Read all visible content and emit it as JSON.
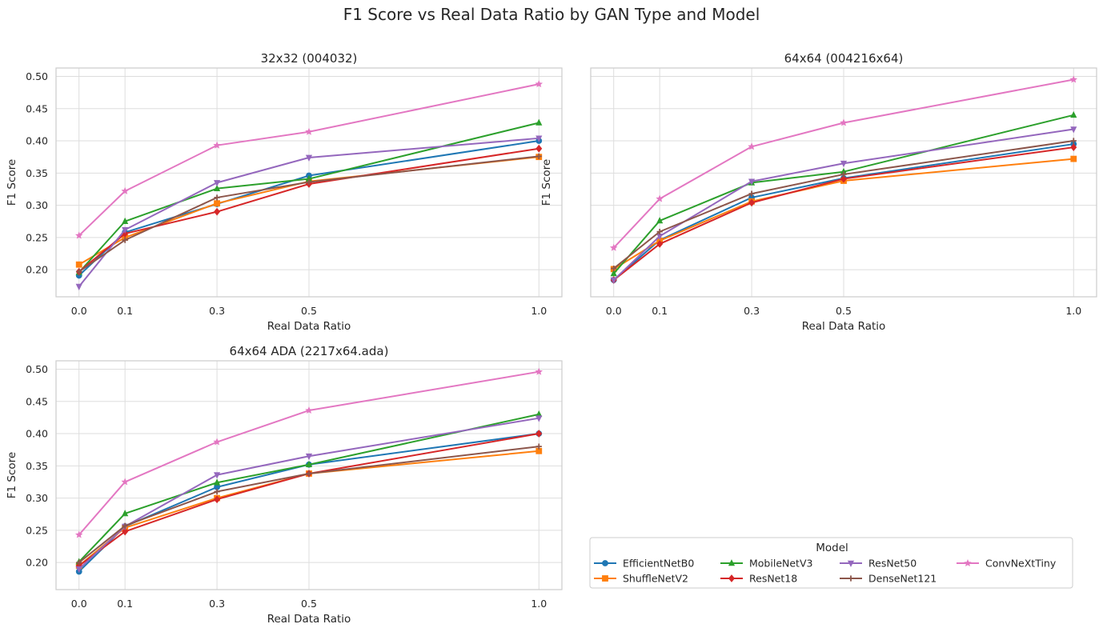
{
  "title": "F1 Score vs Real Data Ratio by GAN Type and Model",
  "legend": {
    "title": "Model",
    "placement": "lower-right empty panel"
  },
  "models": [
    {
      "name": "EfficientNetB0",
      "color": "#1f77b4",
      "marker": "circle"
    },
    {
      "name": "ShuffleNetV2",
      "color": "#ff7f0e",
      "marker": "square"
    },
    {
      "name": "MobileNetV3",
      "color": "#2ca02c",
      "marker": "triangle-up"
    },
    {
      "name": "ResNet18",
      "color": "#d62728",
      "marker": "diamond"
    },
    {
      "name": "ResNet50",
      "color": "#9467bd",
      "marker": "triangle-down"
    },
    {
      "name": "DenseNet121",
      "color": "#8c564b",
      "marker": "plus"
    },
    {
      "name": "ConvNeXtTiny",
      "color": "#e377c2",
      "marker": "star"
    }
  ],
  "chart_data": [
    {
      "type": "line",
      "title": "32x32 (004032)",
      "xlabel": "Real Data Ratio",
      "ylabel": "F1 Score",
      "x": [
        0.0,
        0.1,
        0.3,
        0.5,
        1.0
      ],
      "xticks": [
        "0.0",
        "0.1",
        "0.3",
        "0.5",
        "1.0"
      ],
      "yticks": [
        "0.20",
        "0.25",
        "0.30",
        "0.35",
        "0.40",
        "0.45",
        "0.50"
      ],
      "ylim": [
        0.158,
        0.513
      ],
      "grid": true,
      "series": [
        {
          "name": "EfficientNetB0",
          "values": [
            0.191,
            0.258,
            0.302,
            0.346,
            0.4
          ]
        },
        {
          "name": "ShuffleNetV2",
          "values": [
            0.208,
            0.25,
            0.303,
            0.337,
            0.375
          ]
        },
        {
          "name": "MobileNetV3",
          "values": [
            0.196,
            0.275,
            0.326,
            0.341,
            0.428
          ]
        },
        {
          "name": "ResNet18",
          "values": [
            0.197,
            0.256,
            0.29,
            0.333,
            0.388
          ]
        },
        {
          "name": "ResNet50",
          "values": [
            0.174,
            0.262,
            0.335,
            0.374,
            0.404
          ]
        },
        {
          "name": "DenseNet121",
          "values": [
            0.197,
            0.246,
            0.312,
            0.336,
            0.376
          ]
        },
        {
          "name": "ConvNeXtTiny",
          "values": [
            0.253,
            0.322,
            0.393,
            0.414,
            0.488
          ]
        }
      ]
    },
    {
      "type": "line",
      "title": "64x64 (004216x64)",
      "xlabel": "Real Data Ratio",
      "ylabel": "F1 Score",
      "x": [
        0.0,
        0.1,
        0.3,
        0.5,
        1.0
      ],
      "xticks": [
        "0.0",
        "0.1",
        "0.3",
        "0.5",
        "1.0"
      ],
      "yticks": [],
      "ylim": [
        0.158,
        0.513
      ],
      "grid": true,
      "series": [
        {
          "name": "EfficientNetB0",
          "values": [
            0.184,
            0.246,
            0.312,
            0.342,
            0.395
          ]
        },
        {
          "name": "ShuffleNetV2",
          "values": [
            0.201,
            0.245,
            0.306,
            0.338,
            0.372
          ]
        },
        {
          "name": "MobileNetV3",
          "values": [
            0.194,
            0.276,
            0.335,
            0.352,
            0.44
          ]
        },
        {
          "name": "ResNet18",
          "values": [
            0.184,
            0.24,
            0.304,
            0.341,
            0.39
          ]
        },
        {
          "name": "ResNet50",
          "values": [
            0.184,
            0.252,
            0.337,
            0.365,
            0.418
          ]
        },
        {
          "name": "DenseNet121",
          "values": [
            0.202,
            0.259,
            0.318,
            0.348,
            0.4
          ]
        },
        {
          "name": "ConvNeXtTiny",
          "values": [
            0.234,
            0.31,
            0.391,
            0.428,
            0.495
          ]
        }
      ]
    },
    {
      "type": "line",
      "title": "64x64 ADA (2217x64.ada)",
      "xlabel": "Real Data Ratio",
      "ylabel": "F1 Score",
      "x": [
        0.0,
        0.1,
        0.3,
        0.5,
        1.0
      ],
      "xticks": [
        "0.0",
        "0.1",
        "0.3",
        "0.5",
        "1.0"
      ],
      "yticks": [
        "0.20",
        "0.25",
        "0.30",
        "0.35",
        "0.40",
        "0.45",
        "0.50"
      ],
      "ylim": [
        0.158,
        0.513
      ],
      "grid": true,
      "series": [
        {
          "name": "EfficientNetB0",
          "values": [
            0.186,
            0.256,
            0.317,
            0.352,
            0.4
          ]
        },
        {
          "name": "ShuffleNetV2",
          "values": [
            0.195,
            0.254,
            0.3,
            0.338,
            0.373
          ]
        },
        {
          "name": "MobileNetV3",
          "values": [
            0.201,
            0.276,
            0.324,
            0.352,
            0.43
          ]
        },
        {
          "name": "ResNet18",
          "values": [
            0.195,
            0.248,
            0.298,
            0.338,
            0.4
          ]
        },
        {
          "name": "ResNet50",
          "values": [
            0.19,
            0.256,
            0.336,
            0.365,
            0.424
          ]
        },
        {
          "name": "DenseNet121",
          "values": [
            0.2,
            0.257,
            0.31,
            0.338,
            0.38
          ]
        },
        {
          "name": "ConvNeXtTiny",
          "values": [
            0.243,
            0.325,
            0.387,
            0.436,
            0.496
          ]
        }
      ]
    }
  ]
}
